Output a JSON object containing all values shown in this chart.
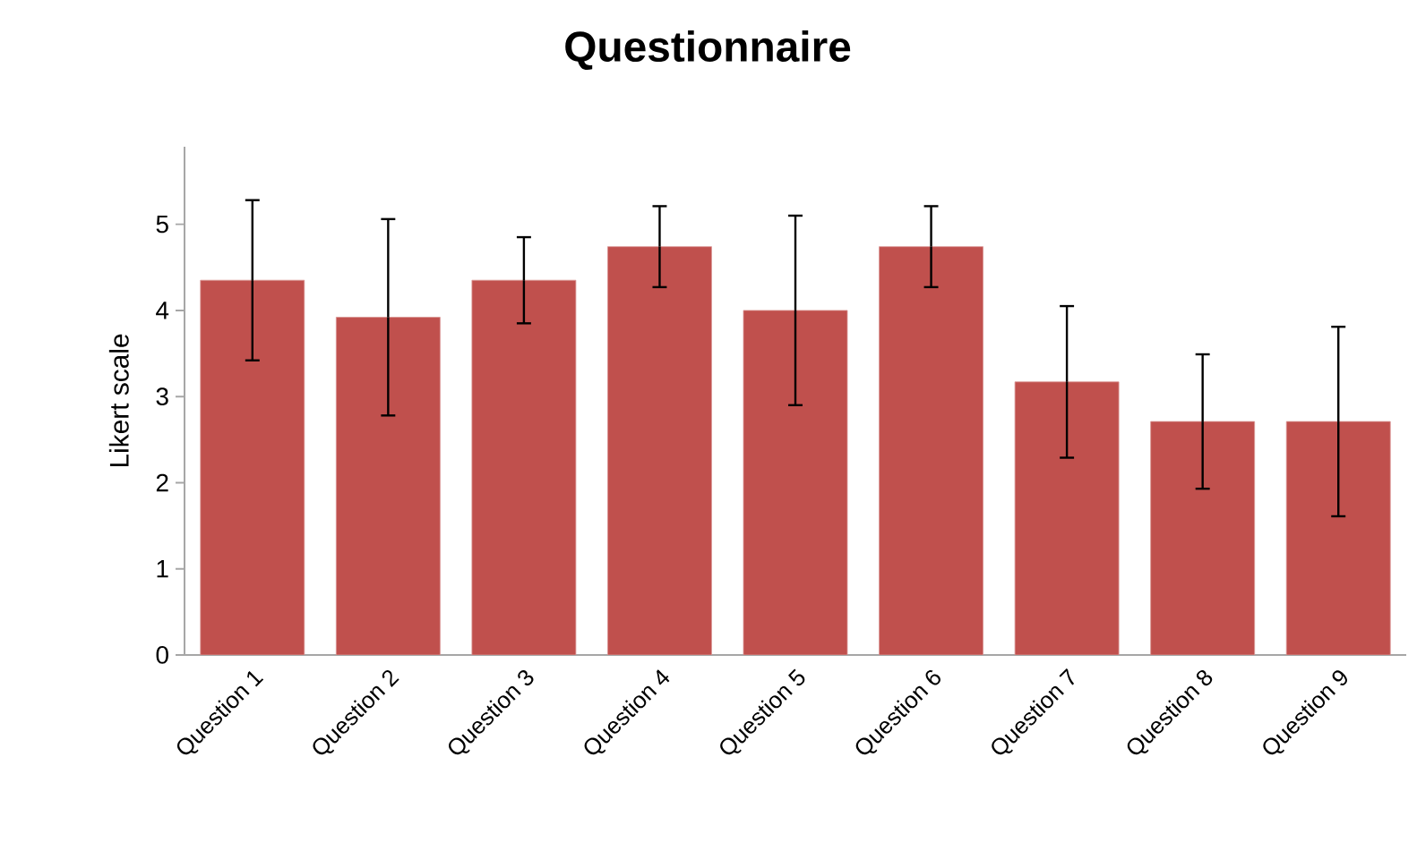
{
  "chart_data": {
    "type": "bar",
    "title": "Questionnaire",
    "ylabel": "Likert scale",
    "categories": [
      "Question 1",
      "Question 2",
      "Question 3",
      "Question 4",
      "Question 5",
      "Question 6",
      "Question 7",
      "Question 8",
      "Question 9"
    ],
    "values": [
      4.35,
      3.92,
      4.35,
      4.74,
      4.0,
      4.74,
      3.17,
      2.71,
      2.71
    ],
    "errors": [
      0.93,
      1.14,
      0.5,
      0.47,
      1.1,
      0.47,
      0.88,
      0.78,
      1.1
    ],
    "color": "#c0504d",
    "ylim": [
      0,
      5.9
    ],
    "yticks": [
      0,
      1,
      2,
      3,
      4,
      5
    ],
    "grid": false
  }
}
